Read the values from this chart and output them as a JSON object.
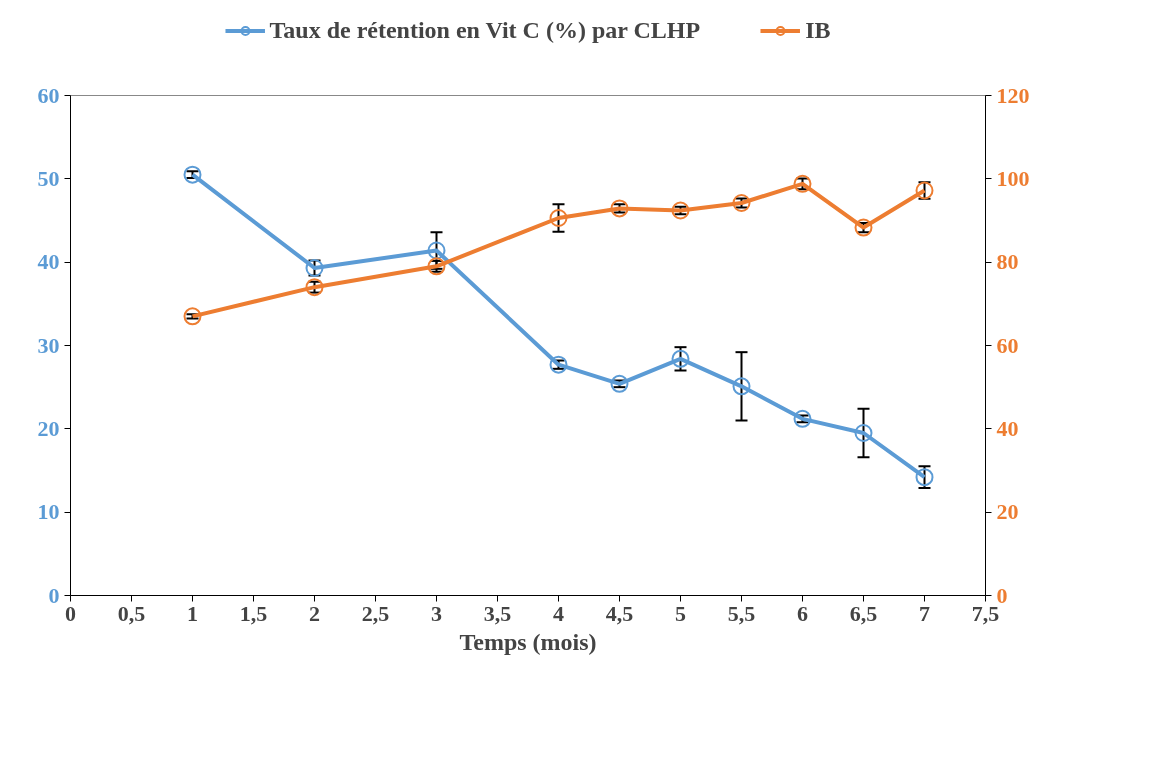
{
  "chart_data": {
    "type": "line",
    "xlabel": "Temps (mois)",
    "x": [
      1,
      2,
      3,
      4,
      4.5,
      5,
      5.5,
      6,
      6.5,
      7
    ],
    "series": [
      {
        "name": "Taux de rétention en Vit C (%) par CLHP",
        "color": "#5b9bd5",
        "values": [
          50.5,
          39.3,
          41.4,
          27.7,
          25.4,
          28.4,
          25.1,
          21.2,
          19.5,
          14.2
        ],
        "errors": [
          0.4,
          0.9,
          2.2,
          0.5,
          0.4,
          1.4,
          4.1,
          0.4,
          2.9,
          1.3
        ]
      },
      {
        "name": "IB",
        "color": "#ed7d31",
        "axis": "y2",
        "values": [
          67,
          74,
          79,
          90.6,
          92.9,
          92.4,
          94.2,
          98.8,
          88.3,
          97.2
        ],
        "errors": [
          0.5,
          1.3,
          1.3,
          3.3,
          1.0,
          0.9,
          1.1,
          1.3,
          1.1,
          2.0
        ]
      }
    ],
    "xlim": [
      0,
      7.5
    ],
    "xticks": [
      0,
      {
        "value": 0.5,
        "label": "0,5"
      },
      1,
      {
        "value": 1.5,
        "label": "1,5"
      },
      2,
      {
        "value": 2.5,
        "label": "2,5"
      },
      3,
      {
        "value": 3.5,
        "label": "3,5"
      },
      4,
      {
        "value": 4.5,
        "label": "4,5"
      },
      5,
      {
        "value": 5.5,
        "label": "5,5"
      },
      6,
      {
        "value": 6.5,
        "label": "6,5"
      },
      7,
      {
        "value": 7.5,
        "label": "7,5"
      }
    ],
    "ylim": [
      0,
      60
    ],
    "yticks": [
      0,
      10,
      20,
      30,
      40,
      50,
      60
    ],
    "y2lim": [
      0,
      120
    ],
    "y2ticks": [
      0,
      20,
      40,
      60,
      80,
      100,
      120
    ],
    "marker": "circle",
    "line_style": "solid",
    "grid": false,
    "legend": "top"
  }
}
